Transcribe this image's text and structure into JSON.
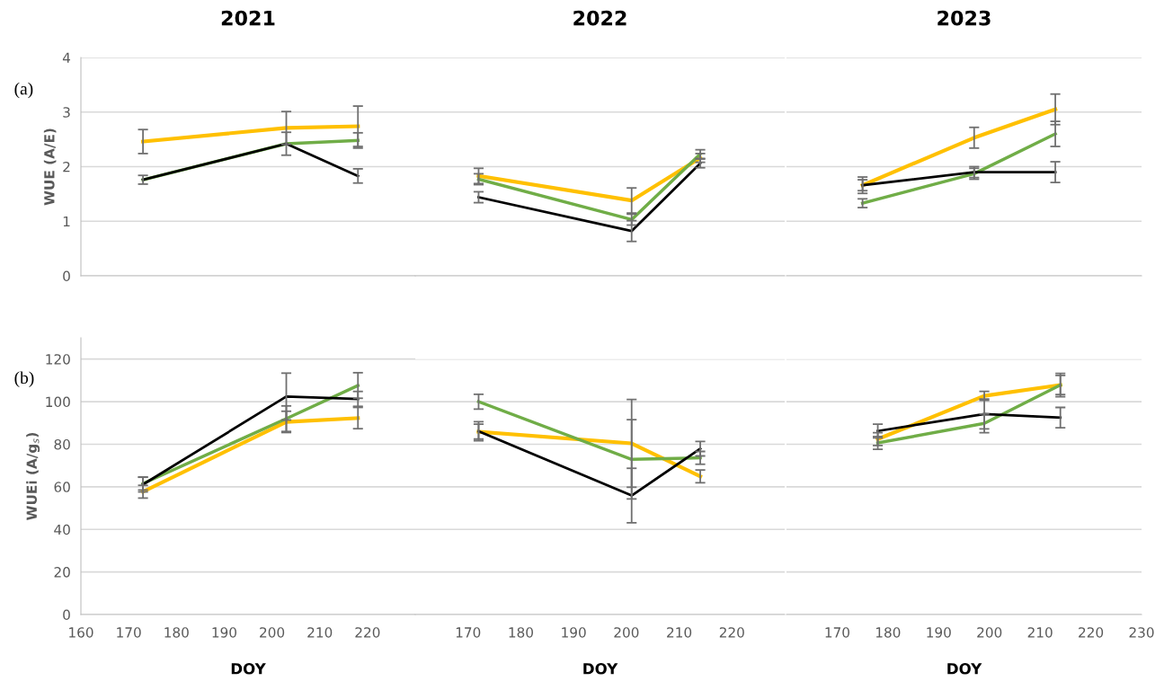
{
  "chart_data": [
    {
      "type": "line",
      "title": "2021",
      "ylabel": "WUE (A/E)",
      "annotations": [
        "(a)"
      ],
      "tick_labels": "y",
      "grid": "y",
      "xlim": [
        160,
        230
      ],
      "ylim": [
        0,
        4
      ],
      "yticks": [
        0,
        1,
        2,
        3,
        4
      ],
      "x": [
        173,
        203,
        218
      ],
      "series": [
        {
          "color": "#ffc000",
          "values": [
            2.46,
            2.71,
            2.74
          ],
          "errors": [
            0.22,
            0.3,
            0.37
          ]
        },
        {
          "color": "#70ad47",
          "values": [
            1.76,
            2.42,
            2.48
          ],
          "errors": [
            null,
            null,
            0.14
          ]
        },
        {
          "color": "#000000",
          "values": [
            1.76,
            2.42,
            1.83
          ],
          "errors": [
            0.08,
            0.21,
            0.13
          ]
        }
      ]
    },
    {
      "type": "line",
      "title": "2022",
      "tick_labels": false,
      "grid": "y",
      "xlim": [
        160,
        230
      ],
      "ylim": [
        0,
        4
      ],
      "yticks": [
        0,
        1,
        2,
        3,
        4
      ],
      "x": [
        172,
        201,
        214
      ],
      "series": [
        {
          "color": "#ffc000",
          "values": [
            1.83,
            1.38,
            2.16
          ],
          "errors": [
            0.14,
            0.23,
            0.08
          ]
        },
        {
          "color": "#70ad47",
          "values": [
            1.77,
            1.03,
            2.23
          ],
          "errors": [
            0.1,
            0.1,
            0.08
          ]
        },
        {
          "color": "#000000",
          "values": [
            1.44,
            0.82,
            2.06
          ],
          "errors": [
            0.1,
            0.19,
            0.08
          ]
        }
      ]
    },
    {
      "type": "line",
      "title": "2023",
      "tick_labels": false,
      "grid": "y",
      "xlim": [
        160,
        230
      ],
      "ylim": [
        0,
        4
      ],
      "yticks": [
        0,
        1,
        2,
        3,
        4
      ],
      "x": [
        175,
        197,
        213
      ],
      "series": [
        {
          "color": "#ffc000",
          "values": [
            1.66,
            2.53,
            3.05
          ],
          "errors": [
            0.1,
            0.19,
            0.28
          ]
        },
        {
          "color": "#70ad47",
          "values": [
            1.33,
            1.87,
            2.6
          ],
          "errors": [
            0.08,
            0.1,
            0.23
          ]
        },
        {
          "color": "#000000",
          "values": [
            1.66,
            1.9,
            1.9
          ],
          "errors": [
            0.15,
            0.1,
            0.19
          ]
        }
      ]
    },
    {
      "type": "line",
      "xlabel": "DOY",
      "ylabel": "WUEi (A/g$_{s}$)",
      "annotations": [
        "(b)"
      ],
      "grid": "y",
      "xlim": [
        160,
        230
      ],
      "xticks": [
        160,
        170,
        180,
        190,
        200,
        210,
        220
      ],
      "ylim": [
        0,
        130
      ],
      "yticks": [
        0,
        20,
        40,
        60,
        80,
        100,
        120
      ],
      "x": [
        173,
        203,
        218
      ],
      "series": [
        {
          "color": "#ffc000",
          "values": [
            57.7,
            90.5,
            92.3
          ],
          "errors": [
            3,
            5,
            5
          ]
        },
        {
          "color": "#70ad47",
          "values": [
            61.5,
            92,
            107.6
          ],
          "errors": [
            3,
            6,
            6
          ]
        },
        {
          "color": "#000000",
          "values": [
            61.1,
            102.4,
            101.3
          ],
          "errors": [
            3.5,
            11,
            3.5
          ]
        }
      ]
    },
    {
      "type": "line",
      "xlabel": "DOY",
      "tick_labels": "x",
      "grid": "y",
      "xlim": [
        160,
        230
      ],
      "xticks": [
        170,
        180,
        190,
        200,
        210,
        220
      ],
      "ylim": [
        0,
        120
      ],
      "yticks": [
        0,
        20,
        40,
        60,
        80,
        100,
        120
      ],
      "x": [
        172,
        201,
        214
      ],
      "series": [
        {
          "color": "#ffc000",
          "values": [
            85.9,
            80.4,
            64.9
          ],
          "errors": [
            3.5,
            20.6,
            3
          ]
        },
        {
          "color": "#70ad47",
          "values": [
            100,
            72.9,
            73.6
          ],
          "errors": [
            3.5,
            18.6,
            3
          ]
        },
        {
          "color": "#000000",
          "values": [
            86.1,
            55.9,
            77.9
          ],
          "errors": [
            4.5,
            12.8,
            3.4
          ]
        }
      ]
    },
    {
      "type": "line",
      "xlabel": "DOY",
      "tick_labels": "x",
      "grid": "y",
      "xlim": [
        160,
        230
      ],
      "xticks": [
        170,
        180,
        190,
        200,
        210,
        220,
        230
      ],
      "ylim": [
        0,
        120
      ],
      "yticks": [
        0,
        20,
        40,
        60,
        80,
        100,
        120
      ],
      "x": [
        178,
        199,
        214
      ],
      "series": [
        {
          "color": "#ffc000",
          "values": [
            82.4,
            102.7,
            107.8
          ],
          "errors": [
            3,
            2.1,
            5.5
          ]
        },
        {
          "color": "#70ad47",
          "values": [
            80.6,
            89.8,
            107.8
          ],
          "errors": [
            3,
            4.4,
            4.5
          ]
        },
        {
          "color": "#000000",
          "values": [
            86.2,
            94.2,
            92.5
          ],
          "errors": [
            3.2,
            7,
            4.8
          ]
        }
      ]
    }
  ]
}
